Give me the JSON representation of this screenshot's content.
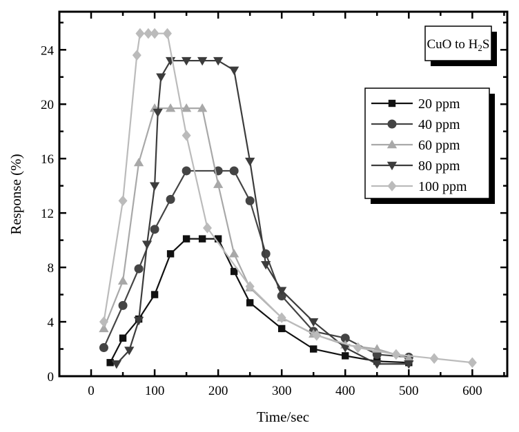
{
  "chart_data": {
    "type": "line",
    "title": "",
    "annotation": {
      "prefix": "CuO to H",
      "sub": "2",
      "suffix": "S"
    },
    "xlabel": "Time/sec",
    "ylabel": "Response (%)",
    "xlim": [
      -50,
      655
    ],
    "ylim": [
      0,
      26.8
    ],
    "xticks": [
      0,
      100,
      200,
      300,
      400,
      500,
      600
    ],
    "yticks": [
      0,
      4,
      8,
      12,
      16,
      20,
      24
    ],
    "grid": false,
    "legend_position": "right",
    "series": [
      {
        "name": "20 ppm",
        "marker": "square",
        "color": "#111111",
        "x": [
          30,
          50,
          75,
          100,
          125,
          150,
          175,
          200,
          225,
          250,
          300,
          350,
          400,
          450,
          500
        ],
        "y": [
          1.0,
          2.8,
          4.2,
          6.0,
          9.0,
          10.1,
          10.1,
          10.1,
          7.7,
          5.4,
          3.5,
          2.0,
          1.5,
          1.1,
          1.0
        ]
      },
      {
        "name": "40 ppm",
        "marker": "circle",
        "color": "#444444",
        "x": [
          20,
          50,
          75,
          100,
          125,
          150,
          200,
          225,
          250,
          275,
          300,
          350,
          400,
          450,
          500
        ],
        "y": [
          2.1,
          5.2,
          7.9,
          10.8,
          13.0,
          15.1,
          15.1,
          15.1,
          12.9,
          9.0,
          5.9,
          3.3,
          2.8,
          1.6,
          1.4
        ]
      },
      {
        "name": "60 ppm",
        "marker": "triangle-up",
        "color": "#a8a8a8",
        "x": [
          20,
          50,
          75,
          100,
          125,
          150,
          175,
          200,
          225,
          250,
          300,
          350,
          400,
          450,
          500
        ],
        "y": [
          3.5,
          7.0,
          15.7,
          19.7,
          19.7,
          19.7,
          19.7,
          14.1,
          9.0,
          6.5,
          4.3,
          3.1,
          2.3,
          2.0,
          1.3
        ]
      },
      {
        "name": "80 ppm",
        "marker": "triangle-down",
        "color": "#3c3c3c",
        "x": [
          40,
          60,
          75,
          88,
          100,
          105,
          110,
          125,
          150,
          175,
          200,
          225,
          250,
          275,
          300,
          350,
          400,
          450,
          500
        ],
        "y": [
          0.9,
          1.9,
          4.1,
          9.7,
          14.0,
          19.4,
          22.0,
          23.2,
          23.2,
          23.2,
          23.2,
          22.5,
          15.8,
          8.2,
          6.3,
          4.0,
          2.1,
          0.9,
          0.9
        ]
      },
      {
        "name": "100 ppm",
        "marker": "diamond",
        "color": "#bbbbbb",
        "x": [
          20,
          50,
          72,
          77,
          90,
          100,
          120,
          150,
          183,
          250,
          300,
          355,
          420,
          480,
          540,
          600
        ],
        "y": [
          4.0,
          12.9,
          23.6,
          25.2,
          25.2,
          25.2,
          25.2,
          17.7,
          10.9,
          6.6,
          4.3,
          3.0,
          2.1,
          1.6,
          1.3,
          1.0
        ]
      }
    ]
  }
}
